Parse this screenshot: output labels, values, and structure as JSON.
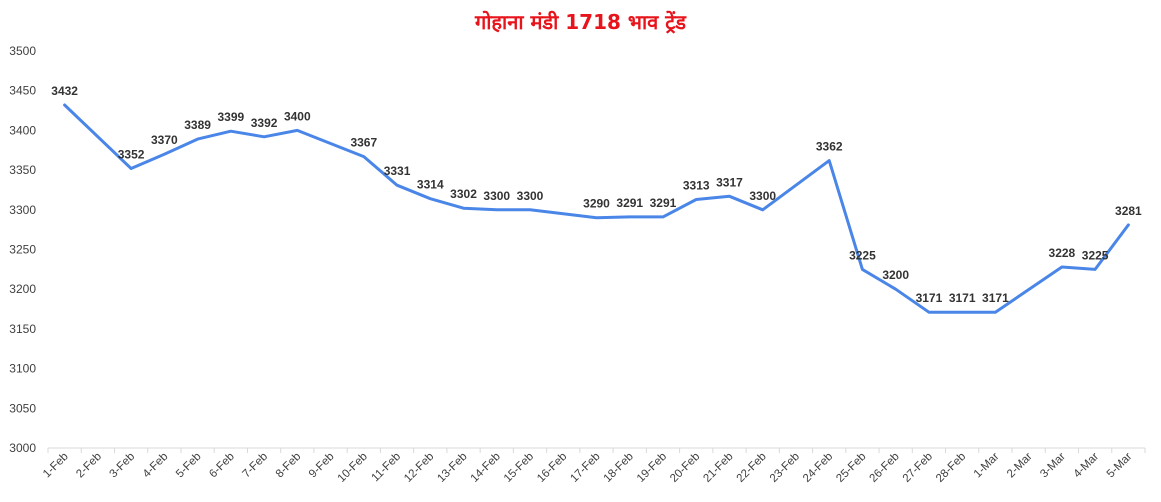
{
  "chart_data": {
    "type": "line",
    "title": "गोहाना मंडी 1718 भाव ट्रेंड",
    "xlabel": "",
    "ylabel": "",
    "ylim": [
      3000,
      3500
    ],
    "yticks": [
      3000,
      3050,
      3100,
      3150,
      3200,
      3250,
      3300,
      3350,
      3400,
      3450,
      3500
    ],
    "grid": false,
    "categories": [
      "1-Feb",
      "2-Feb",
      "3-Feb",
      "4-Feb",
      "5-Feb",
      "6-Feb",
      "7-Feb",
      "8-Feb",
      "9-Feb",
      "10-Feb",
      "11-Feb",
      "12-Feb",
      "13-Feb",
      "14-Feb",
      "15-Feb",
      "16-Feb",
      "17-Feb",
      "18-Feb",
      "19-Feb",
      "20-Feb",
      "21-Feb",
      "22-Feb",
      "23-Feb",
      "24-Feb",
      "25-Feb",
      "26-Feb",
      "27-Feb",
      "28-Feb",
      "1-Mar",
      "2-Mar",
      "3-Mar",
      "4-Mar",
      "5-Mar"
    ],
    "series": [
      {
        "values": [
          3432,
          null,
          3352,
          3370,
          3389,
          3399,
          3392,
          3400,
          null,
          3367,
          3331,
          3314,
          3302,
          3300,
          3300,
          null,
          3290,
          3291,
          3291,
          3313,
          3317,
          3300,
          null,
          3362,
          3225,
          3200,
          3171,
          3171,
          3171,
          null,
          3228,
          3225,
          3281
        ]
      }
    ]
  },
  "colors": {
    "line": "#4a86e8",
    "title": "#e8141b",
    "axis": "#d9d9d9"
  }
}
